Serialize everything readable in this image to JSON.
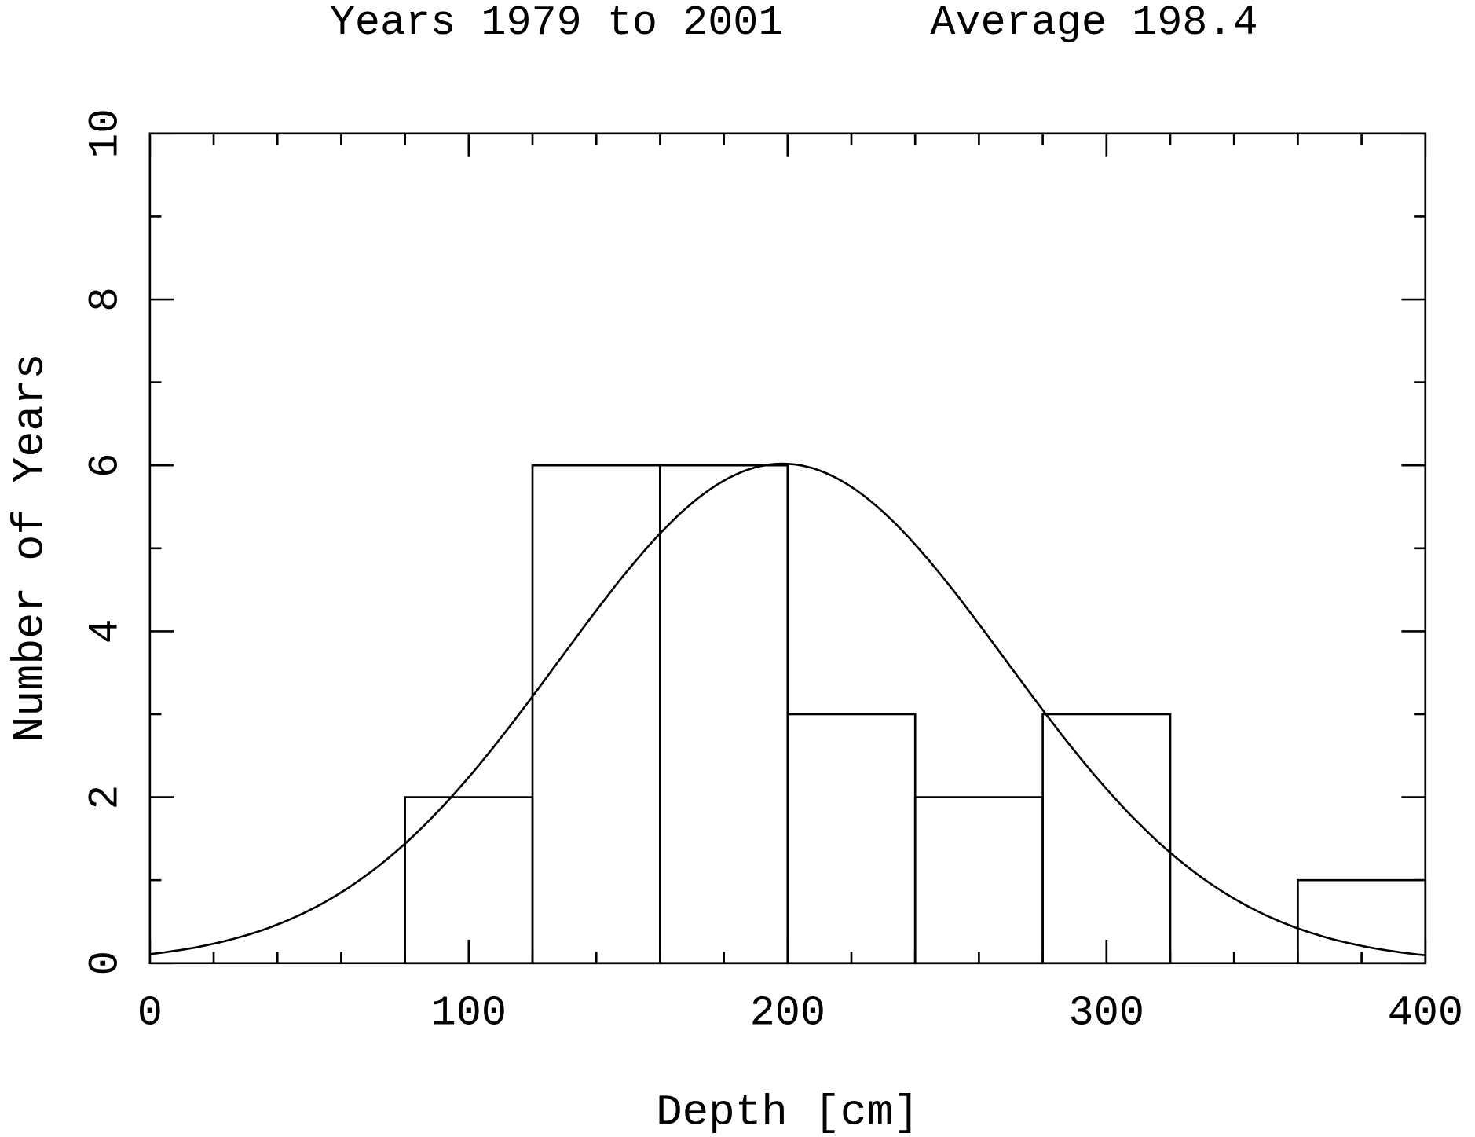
{
  "chart_data": {
    "type": "bar",
    "subtype": "histogram-with-normal-fit",
    "title_left": "Years 1979 to 2001",
    "title_right": "Average 198.4",
    "xlabel": "Depth [cm]",
    "ylabel": "Number of Years",
    "xlim": [
      0,
      400
    ],
    "ylim": [
      0,
      10
    ],
    "x_ticks": [
      0,
      100,
      200,
      300,
      400
    ],
    "x_minor_step": 20,
    "y_ticks": [
      0,
      2,
      4,
      6,
      8,
      10
    ],
    "y_minor_step": 1,
    "grid": false,
    "bins": [
      {
        "from": 80,
        "to": 120,
        "count": 2
      },
      {
        "from": 120,
        "to": 160,
        "count": 6
      },
      {
        "from": 160,
        "to": 200,
        "count": 6
      },
      {
        "from": 200,
        "to": 240,
        "count": 3
      },
      {
        "from": 240,
        "to": 280,
        "count": 2
      },
      {
        "from": 280,
        "to": 320,
        "count": 3
      },
      {
        "from": 360,
        "to": 400,
        "count": 1
      }
    ],
    "fit": {
      "type": "gaussian",
      "mean": 198.4,
      "sigma": 70,
      "peak": 6.02
    },
    "color": "#000000"
  }
}
